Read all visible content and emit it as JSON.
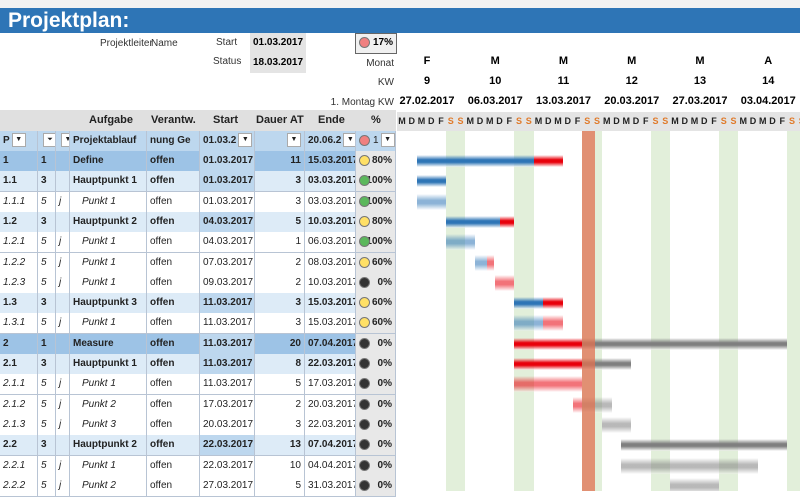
{
  "sheet": {
    "title": "Projektplan:"
  },
  "info": {
    "projektleiter_label": "Projektleiter",
    "projektleiter_value": "Name",
    "start_label": "Start",
    "start_value": "01.03.2017",
    "status_label": "Status",
    "status_value": "18.03.2017",
    "overall_percent": "17%",
    "monat_label": "Monat",
    "kw_label": "KW",
    "montag_label": "1. Montag KW"
  },
  "columns": {
    "aufgabe": "Aufgabe",
    "verantw": "Verantw.",
    "start": "Start",
    "dauer": "Dauer AT",
    "ende": "Ende",
    "percent": "%"
  },
  "filter_row": {
    "p": "P",
    "aufgabe": "Projektablauf",
    "verantw": "nung Ge",
    "start": "01.03.2",
    "ende": "20.06.2",
    "percent": "1"
  },
  "weeks": [
    {
      "month": "F",
      "kw": "9",
      "monday": "27.02.2017"
    },
    {
      "month": "M",
      "kw": "10",
      "monday": "06.03.2017"
    },
    {
      "month": "M",
      "kw": "11",
      "monday": "13.03.2017"
    },
    {
      "month": "M",
      "kw": "12",
      "monday": "20.03.2017"
    },
    {
      "month": "M",
      "kw": "13",
      "monday": "27.03.2017"
    },
    {
      "month": "A",
      "kw": "14",
      "monday": "03.04.2017"
    }
  ],
  "day_letters": [
    "M",
    "D",
    "M",
    "D",
    "F",
    "S",
    "S"
  ],
  "colors": {
    "title": "#2e75b6",
    "progress": "#2e75b6",
    "overdue": "#e8000b",
    "future": "#7f7f7f",
    "today": "#e07050",
    "weekend": "#e2efda"
  },
  "rows": [
    {
      "id": "1",
      "lvl": "1",
      "j": "",
      "task": "Define",
      "resp": "offen",
      "start": "01.03.2017",
      "dur": "11",
      "end": "15.03.2017",
      "status": "yellow",
      "pct": "80%",
      "type": "phase"
    },
    {
      "id": "1.1",
      "lvl": "3",
      "j": "",
      "task": "Hauptpunkt 1",
      "resp": "offen",
      "start": "01.03.2017",
      "dur": "3",
      "end": "03.03.2017",
      "status": "green",
      "pct": "100%",
      "type": "main"
    },
    {
      "id": "1.1.1",
      "lvl": "5",
      "j": "j",
      "task": "Punkt 1",
      "resp": "offen",
      "start": "01.03.2017",
      "dur": "3",
      "end": "03.03.2017",
      "status": "green",
      "pct": "100%",
      "type": "sub"
    },
    {
      "id": "1.2",
      "lvl": "3",
      "j": "",
      "task": "Hauptpunkt 2",
      "resp": "offen",
      "start": "04.03.2017",
      "dur": "5",
      "end": "10.03.2017",
      "status": "yellow",
      "pct": "80%",
      "type": "main"
    },
    {
      "id": "1.2.1",
      "lvl": "5",
      "j": "j",
      "task": "Punkt 1",
      "resp": "offen",
      "start": "04.03.2017",
      "dur": "1",
      "end": "06.03.2017",
      "status": "green",
      "pct": "100%",
      "type": "sub"
    },
    {
      "id": "1.2.2",
      "lvl": "5",
      "j": "j",
      "task": "Punkt 1",
      "resp": "offen",
      "start": "07.03.2017",
      "dur": "2",
      "end": "08.03.2017",
      "status": "yellow",
      "pct": "60%",
      "type": "sub"
    },
    {
      "id": "1.2.3",
      "lvl": "5",
      "j": "j",
      "task": "Punkt 1",
      "resp": "offen",
      "start": "09.03.2017",
      "dur": "2",
      "end": "10.03.2017",
      "status": "black",
      "pct": "0%",
      "type": "sub"
    },
    {
      "id": "1.3",
      "lvl": "3",
      "j": "",
      "task": "Hauptpunkt 3",
      "resp": "offen",
      "start": "11.03.2017",
      "dur": "3",
      "end": "15.03.2017",
      "status": "yellow",
      "pct": "60%",
      "type": "main"
    },
    {
      "id": "1.3.1",
      "lvl": "5",
      "j": "j",
      "task": "Punkt 1",
      "resp": "offen",
      "start": "11.03.2017",
      "dur": "3",
      "end": "15.03.2017",
      "status": "yellow",
      "pct": "60%",
      "type": "sub"
    },
    {
      "id": "2",
      "lvl": "1",
      "j": "",
      "task": "Measure",
      "resp": "offen",
      "start": "11.03.2017",
      "dur": "20",
      "end": "07.04.2017",
      "status": "black",
      "pct": "0%",
      "type": "phase"
    },
    {
      "id": "2.1",
      "lvl": "3",
      "j": "",
      "task": "Hauptpunkt 1",
      "resp": "offen",
      "start": "11.03.2017",
      "dur": "8",
      "end": "22.03.2017",
      "status": "black",
      "pct": "0%",
      "type": "main"
    },
    {
      "id": "2.1.1",
      "lvl": "5",
      "j": "j",
      "task": "Punkt 1",
      "resp": "offen",
      "start": "11.03.2017",
      "dur": "5",
      "end": "17.03.2017",
      "status": "black",
      "pct": "0%",
      "type": "sub"
    },
    {
      "id": "2.1.2",
      "lvl": "5",
      "j": "j",
      "task": "Punkt 2",
      "resp": "offen",
      "start": "17.03.2017",
      "dur": "2",
      "end": "20.03.2017",
      "status": "black",
      "pct": "0%",
      "type": "sub"
    },
    {
      "id": "2.1.3",
      "lvl": "5",
      "j": "j",
      "task": "Punkt 3",
      "resp": "offen",
      "start": "20.03.2017",
      "dur": "3",
      "end": "22.03.2017",
      "status": "black",
      "pct": "0%",
      "type": "sub"
    },
    {
      "id": "2.2",
      "lvl": "3",
      "j": "",
      "task": "Hauptpunkt 2",
      "resp": "offen",
      "start": "22.03.2017",
      "dur": "13",
      "end": "07.04.2017",
      "status": "black",
      "pct": "0%",
      "type": "main"
    },
    {
      "id": "2.2.1",
      "lvl": "5",
      "j": "j",
      "task": "Punkt 1",
      "resp": "offen",
      "start": "22.03.2017",
      "dur": "10",
      "end": "04.04.2017",
      "status": "black",
      "pct": "0%",
      "type": "sub"
    },
    {
      "id": "2.2.2",
      "lvl": "5",
      "j": "j",
      "task": "Punkt 2",
      "resp": "offen",
      "start": "27.03.2017",
      "dur": "5",
      "end": "31.03.2017",
      "status": "black",
      "pct": "0%",
      "type": "sub"
    }
  ]
}
